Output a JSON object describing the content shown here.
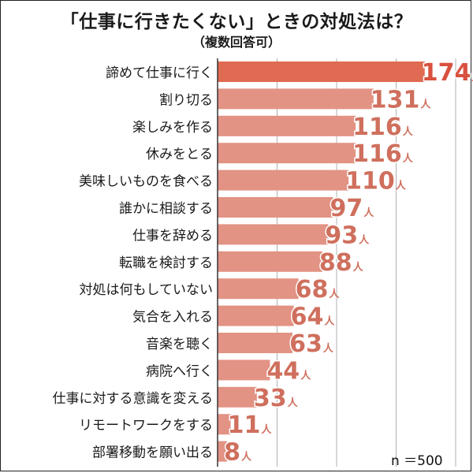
{
  "chart_data": {
    "type": "bar",
    "orientation": "horizontal",
    "title": "「仕事に行きたくない」ときの対処法は？",
    "subtitle": "（複数回答可）",
    "unit": "人",
    "sample_note": "n ＝500",
    "categories": [
      "諦めて仕事に行く",
      "割り切る",
      "楽しみを作る",
      "休みをとる",
      "美味しいものを食べる",
      "誰かに相談する",
      "仕事を辞める",
      "転職を検討する",
      "対処は何もしていない",
      "気合を入れる",
      "音楽を聴く",
      "病院へ行く",
      "仕事に対する意識を変える",
      "リモートワークをする",
      "部署移動を願い出る"
    ],
    "values": [
      174,
      131,
      116,
      116,
      110,
      97,
      93,
      88,
      68,
      64,
      63,
      44,
      33,
      11,
      8
    ],
    "xlim": [
      0,
      200
    ],
    "grid": true,
    "colors": {
      "highlight": "#e06a52",
      "bar": "#e29384",
      "label_highlight": "#d9513f",
      "label": "#cf6f5d",
      "grid": "#b0b0b0",
      "axis": "#333333"
    }
  }
}
